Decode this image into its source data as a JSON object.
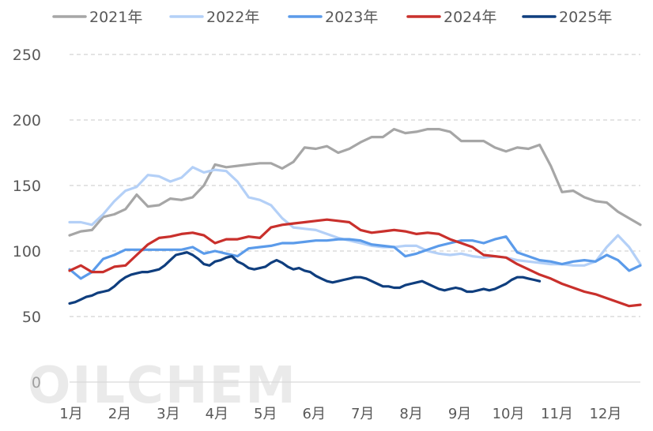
{
  "watermark": "OILCHEM",
  "chart_data": {
    "type": "line",
    "title": "",
    "xlabel": "",
    "ylabel": "",
    "ylim": [
      0,
      250
    ],
    "yticks": [
      0,
      50,
      100,
      150,
      200,
      250
    ],
    "grid": "horizontal-dashed",
    "legend": "top",
    "months": [
      "1月",
      "2月",
      "3月",
      "4月",
      "5月",
      "6月",
      "7月",
      "8月",
      "9月",
      "10月",
      "11月",
      "12月"
    ],
    "x_unit": "week",
    "series": [
      {
        "name": "2021年",
        "color": "#a6a6a6",
        "x": [
          1,
          2,
          3,
          4,
          5,
          6,
          7,
          8,
          9,
          10,
          11,
          12,
          13,
          14,
          15,
          16,
          17,
          18,
          19,
          20,
          21,
          22,
          23,
          24,
          25,
          26,
          27,
          28,
          29,
          30,
          31,
          32,
          33,
          34,
          35,
          36,
          37,
          38,
          39,
          40,
          41,
          42,
          43,
          44,
          45,
          46,
          47,
          48,
          49,
          50,
          51,
          52
        ],
        "values": [
          112,
          115,
          116,
          126,
          128,
          132,
          143,
          134,
          135,
          140,
          139,
          141,
          150,
          166,
          164,
          165,
          166,
          167,
          167,
          163,
          168,
          179,
          178,
          180,
          175,
          178,
          183,
          187,
          187,
          193,
          190,
          191,
          193,
          193,
          191,
          184,
          184,
          184,
          179,
          176,
          179,
          178,
          181,
          165,
          145,
          146,
          141,
          138,
          137,
          130,
          125,
          120
        ]
      },
      {
        "name": "2022年",
        "color": "#b4d0f7",
        "x": [
          1,
          2,
          3,
          4,
          5,
          6,
          7,
          8,
          9,
          10,
          11,
          12,
          13,
          14,
          15,
          16,
          17,
          18,
          19,
          20,
          21,
          22,
          23,
          24,
          25,
          26,
          27,
          28,
          29,
          30,
          31,
          32,
          33,
          34,
          35,
          36,
          37,
          38,
          39,
          40,
          41,
          42,
          43,
          44,
          45,
          46,
          47,
          48,
          49,
          50,
          51,
          52
        ],
        "values": [
          122,
          122,
          120,
          128,
          138,
          146,
          149,
          158,
          157,
          153,
          156,
          164,
          160,
          162,
          161,
          153,
          141,
          139,
          135,
          125,
          118,
          117,
          116,
          113,
          110,
          108,
          106,
          104,
          103,
          103,
          104,
          104,
          100,
          98,
          97,
          98,
          96,
          95,
          96,
          95,
          93,
          92,
          91,
          90,
          90,
          89,
          89,
          92,
          103,
          112,
          103,
          90
        ]
      },
      {
        "name": "2023年",
        "color": "#5b9bea",
        "x": [
          1,
          2,
          3,
          4,
          5,
          6,
          7,
          8,
          9,
          10,
          11,
          12,
          13,
          14,
          15,
          16,
          17,
          18,
          19,
          20,
          21,
          22,
          23,
          24,
          25,
          26,
          27,
          28,
          29,
          30,
          31,
          32,
          33,
          34,
          35,
          36,
          37,
          38,
          39,
          40,
          41,
          42,
          43,
          44,
          45,
          46,
          47,
          48,
          49,
          50,
          51,
          52
        ],
        "values": [
          86,
          79,
          84,
          94,
          97,
          101,
          101,
          101,
          101,
          101,
          101,
          103,
          98,
          100,
          98,
          96,
          102,
          103,
          104,
          106,
          106,
          107,
          108,
          108,
          109,
          109,
          108,
          105,
          104,
          103,
          96,
          98,
          101,
          104,
          106,
          108,
          108,
          106,
          109,
          111,
          99,
          96,
          93,
          92,
          90,
          92,
          93,
          92,
          97,
          93,
          85,
          89
        ]
      },
      {
        "name": "2024年",
        "color": "#c9302c",
        "x": [
          1,
          2,
          3,
          4,
          5,
          6,
          7,
          8,
          9,
          10,
          11,
          12,
          13,
          14,
          15,
          16,
          17,
          18,
          19,
          20,
          21,
          22,
          23,
          24,
          25,
          26,
          27,
          28,
          29,
          30,
          31,
          32,
          33,
          34,
          35,
          36,
          37,
          38,
          39,
          40,
          41,
          42,
          43,
          44,
          45,
          46,
          47,
          48,
          49,
          50,
          51,
          52
        ],
        "values": [
          85,
          89,
          84,
          84,
          88,
          89,
          97,
          105,
          110,
          111,
          113,
          114,
          112,
          106,
          109,
          109,
          111,
          110,
          118,
          120,
          121,
          122,
          123,
          124,
          123,
          122,
          116,
          114,
          115,
          116,
          115,
          113,
          114,
          113,
          109,
          106,
          103,
          97,
          96,
          95,
          90,
          86,
          82,
          79,
          75,
          72,
          69,
          67,
          64,
          61,
          58,
          59
        ]
      },
      {
        "name": "2025年",
        "color": "#0f3e7e",
        "x": [
          1,
          1.5,
          2,
          2.5,
          3,
          3.5,
          4,
          4.5,
          5,
          5.5,
          6,
          6.5,
          7,
          7.5,
          8,
          8.5,
          9,
          9.5,
          10,
          10.5,
          11,
          11.5,
          12,
          12.5,
          13,
          13.5,
          14,
          14.5,
          15,
          15.5,
          16,
          16.5,
          17,
          17.5,
          18,
          18.5,
          19,
          19.5,
          20,
          20.5,
          21,
          21.5,
          22,
          22.5,
          23,
          23.5,
          24,
          24.5,
          25,
          25.5,
          26,
          26.5,
          27,
          27.5,
          28,
          28.5,
          29,
          29.5,
          30,
          30.5,
          31,
          31.5,
          32,
          32.5,
          33,
          33.5,
          34,
          34.5,
          35,
          35.5,
          36,
          36.5,
          37,
          37.5,
          38,
          38.5,
          39,
          39.5,
          40,
          40.5,
          41,
          41.5,
          42,
          42.5,
          43
        ],
        "values": [
          60,
          61,
          63,
          65,
          66,
          68,
          69,
          70,
          73,
          77,
          80,
          82,
          83,
          84,
          84,
          85,
          86,
          89,
          93,
          97,
          98,
          99,
          97,
          94,
          90,
          89,
          92,
          93,
          95,
          96,
          92,
          90,
          87,
          86,
          87,
          88,
          91,
          93,
          91,
          88,
          86,
          87,
          85,
          84,
          81,
          79,
          77,
          76,
          77,
          78,
          79,
          80,
          80,
          79,
          77,
          75,
          73,
          73,
          72,
          72,
          74,
          75,
          76,
          77,
          75,
          73,
          71,
          70,
          71,
          72,
          71,
          69,
          69,
          70,
          71,
          70,
          71,
          73,
          75,
          78,
          80,
          80,
          79,
          78,
          77
        ]
      }
    ]
  }
}
